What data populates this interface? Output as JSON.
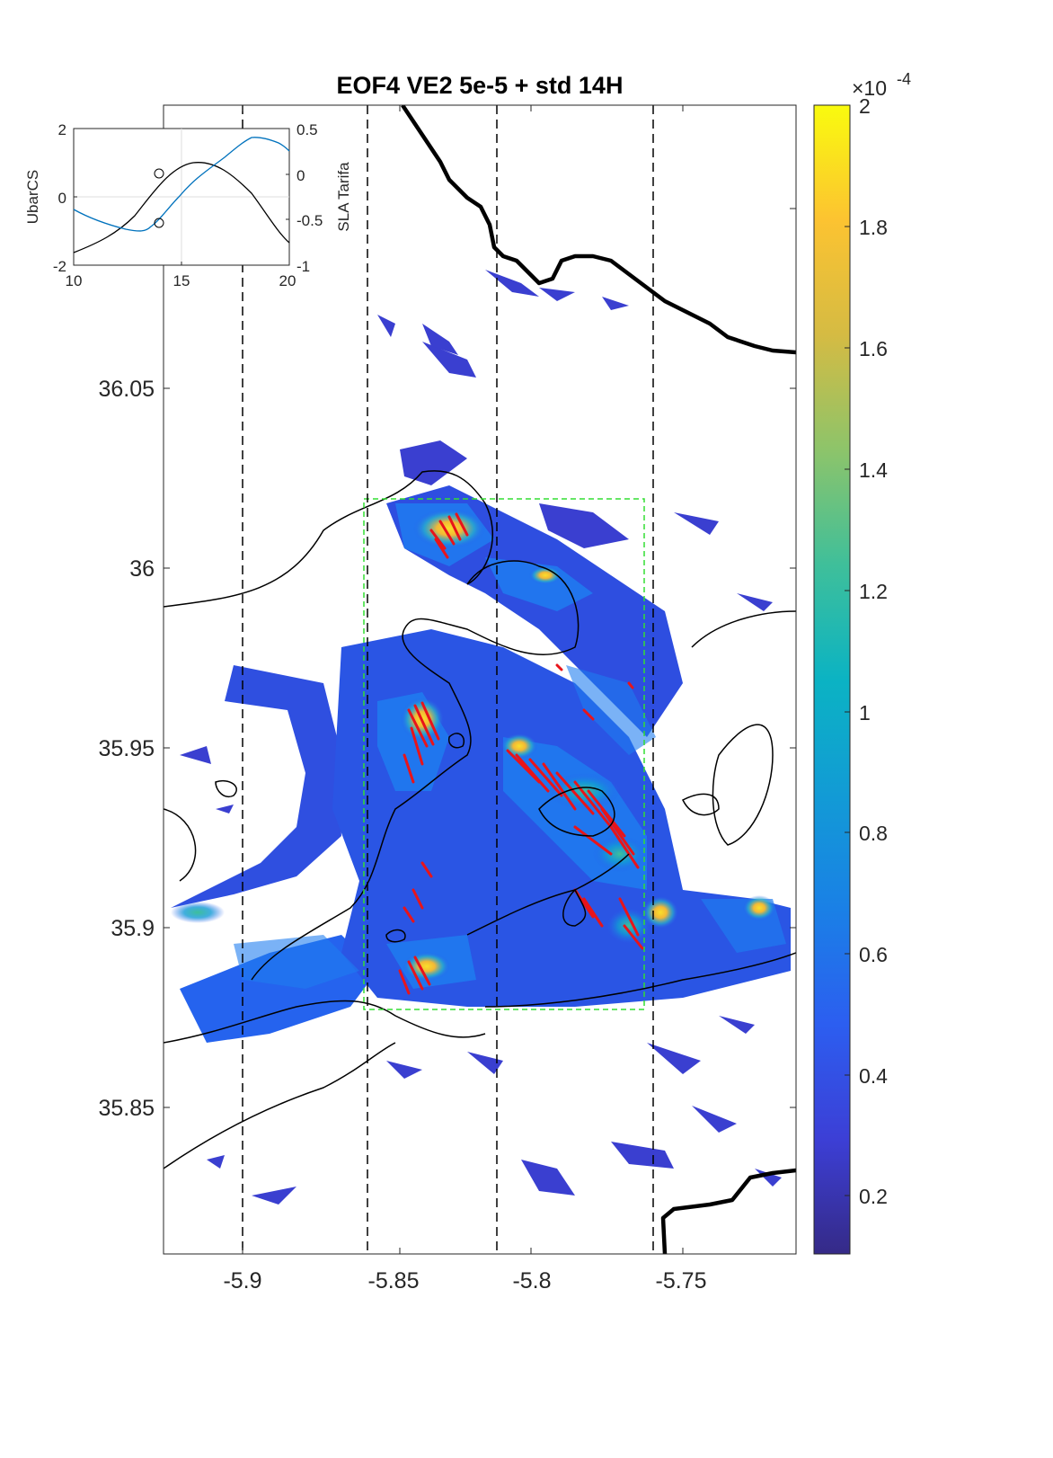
{
  "figure": {
    "title": "EOF4 VE2 5e-5 + std 14H"
  },
  "map": {
    "x_ticks": [
      "-5.9",
      "-5.85",
      "-5.8",
      "-5.75"
    ],
    "y_ticks": [
      "36.05",
      "36",
      "35.95",
      "35.9",
      "35.85"
    ]
  },
  "colorbar": {
    "exponent_base": "×10",
    "exponent_power": "-4",
    "ticks": [
      "2",
      "1.8",
      "1.6",
      "1.4",
      "1.2",
      "1",
      "0.8",
      "0.6",
      "0.4",
      "0.2"
    ],
    "colormap": [
      "#3e26a8",
      "#4250e6",
      "#2b80f5",
      "#1ca8df",
      "#1ebfb2",
      "#50cc80",
      "#a7c74a",
      "#f1b933",
      "#fbd82a",
      "#f9fb14"
    ]
  },
  "inset": {
    "left_label": "UbarCS",
    "right_label": "SLA Tarifa",
    "x_ticks": [
      "10",
      "15",
      "20"
    ],
    "left_ticks": [
      "2",
      "0",
      "-2"
    ],
    "right_ticks": [
      "0.5",
      "0",
      "-0.5",
      "-1"
    ],
    "series_colors": {
      "ubarcs": "#000000",
      "sla": "#0072bd"
    }
  },
  "colors": {
    "field_low": "#3a3fd0",
    "field_mid": "#1f7df0",
    "field_high": "#f4c430",
    "ridges": "#e8141a",
    "box": "#33dd33"
  }
}
